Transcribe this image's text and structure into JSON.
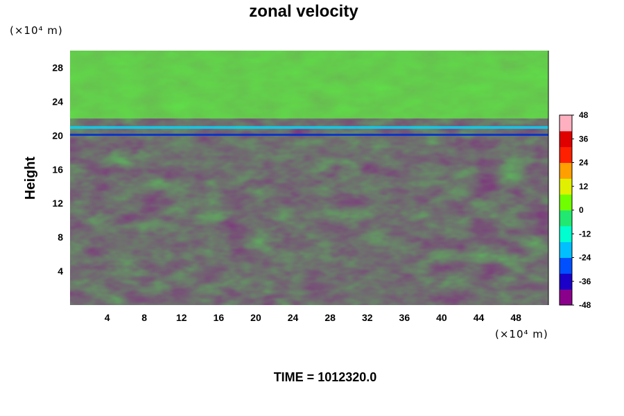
{
  "chart_data": {
    "type": "heatmap",
    "title": "zonal velocity",
    "ylabel": "Height",
    "x_unit_label": "(×10⁴ m)",
    "y_unit_label": "(×10⁴ m)",
    "footer": "TIME = 1012320.0",
    "xlim": [
      0,
      51.5
    ],
    "ylim": [
      0,
      30
    ],
    "x_ticks": [
      4,
      8,
      12,
      16,
      20,
      24,
      28,
      32,
      36,
      40,
      44,
      48
    ],
    "y_ticks": [
      4,
      8,
      12,
      16,
      20,
      24,
      28
    ],
    "colorbar": {
      "vmin": -48,
      "vmax": 48,
      "ticks": [
        48,
        36,
        24,
        12,
        0,
        -12,
        -24,
        -36,
        -48
      ],
      "colors": [
        "#8b008b",
        "#1a00c8",
        "#0050ff",
        "#00c0ff",
        "#00ffd0",
        "#20e870",
        "#70ff00",
        "#e0f000",
        "#ffa000",
        "#ff2000",
        "#e00000",
        "#ffb0c0"
      ]
    },
    "grid": false
  }
}
